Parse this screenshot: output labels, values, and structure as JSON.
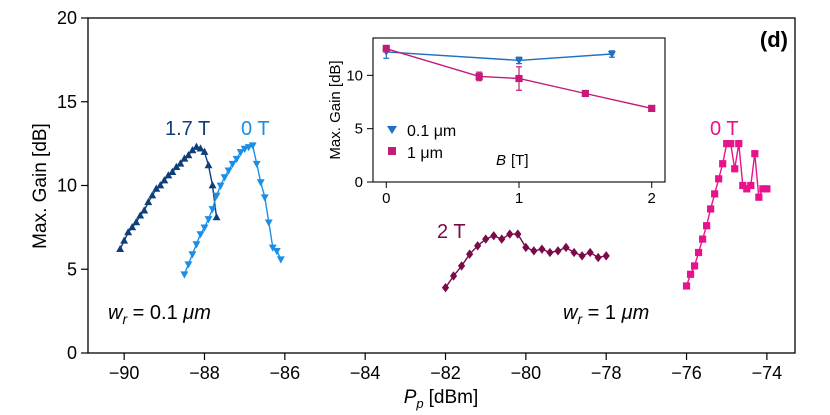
{
  "chart_data": [
    {
      "type": "scatter",
      "panel_label": "(d)",
      "xlabel": "P_p [dBm]",
      "xlabel_main": "P",
      "xlabel_sub": "p",
      "xlabel_unit": "[dBm]",
      "ylabel": "Max. Gain [dB]",
      "xlim": [
        -90.9,
        -73.3
      ],
      "ylim": [
        0,
        20
      ],
      "xticks": [
        -90,
        -88,
        -86,
        -84,
        -82,
        -80,
        -78,
        -76,
        -74
      ],
      "yticks": [
        0,
        5,
        10,
        15,
        20
      ],
      "xtick_labels": [
        "−90",
        "−88",
        "−86",
        "−84",
        "−82",
        "−80",
        "−78",
        "−76",
        "−74"
      ],
      "ytick_labels": [
        "0",
        "5",
        "10",
        "15",
        "20"
      ],
      "series": [
        {
          "name": "0.1 um, 1.7 T",
          "color": "#0f3f7a",
          "marker": "triangle-up",
          "x": [
            -90.1,
            -90.0,
            -89.9,
            -89.8,
            -89.7,
            -89.6,
            -89.5,
            -89.4,
            -89.3,
            -89.2,
            -89.1,
            -89.0,
            -88.9,
            -88.8,
            -88.7,
            -88.6,
            -88.5,
            -88.4,
            -88.3,
            -88.2,
            -88.1,
            -88.0,
            -87.9,
            -87.8,
            -87.7
          ],
          "y": [
            6.2,
            6.7,
            7.2,
            7.5,
            7.8,
            8.2,
            8.5,
            9.0,
            9.4,
            9.8,
            10.0,
            10.3,
            10.6,
            10.8,
            11.1,
            11.3,
            11.6,
            11.8,
            12.1,
            12.3,
            12.2,
            12.0,
            11.2,
            10.0,
            8.1
          ]
        },
        {
          "name": "0.1 um, 0 T",
          "color": "#1a8fe8",
          "marker": "triangle-down",
          "x": [
            -88.5,
            -88.4,
            -88.3,
            -88.2,
            -88.1,
            -88.0,
            -87.9,
            -87.8,
            -87.7,
            -87.6,
            -87.5,
            -87.4,
            -87.3,
            -87.2,
            -87.1,
            -87.0,
            -86.9,
            -86.8,
            -86.7,
            -86.6,
            -86.5,
            -86.4,
            -86.3,
            -86.2,
            -86.1
          ],
          "y": [
            4.7,
            5.3,
            5.9,
            6.5,
            7.1,
            7.5,
            8.0,
            8.6,
            9.4,
            10.0,
            10.5,
            10.9,
            11.3,
            11.6,
            12.0,
            12.2,
            12.3,
            12.4,
            11.3,
            10.2,
            9.3,
            7.8,
            6.3,
            6.1,
            5.6
          ]
        },
        {
          "name": "1 um, 2 T",
          "color": "#7a0a4a",
          "marker": "diamond",
          "x": [
            -82.0,
            -81.8,
            -81.6,
            -81.4,
            -81.2,
            -81.0,
            -80.8,
            -80.6,
            -80.4,
            -80.2,
            -80.0,
            -79.8,
            -79.6,
            -79.4,
            -79.2,
            -79.0,
            -78.8,
            -78.6,
            -78.4,
            -78.2,
            -78.0
          ],
          "y": [
            3.9,
            4.6,
            5.2,
            5.9,
            6.4,
            6.8,
            7.0,
            6.8,
            7.1,
            7.1,
            6.3,
            6.1,
            6.2,
            6.0,
            6.1,
            6.3,
            6.0,
            5.8,
            6.0,
            5.7,
            5.8
          ]
        },
        {
          "name": "1 um, 0 T",
          "color": "#e8138c",
          "marker": "square",
          "x": [
            -76.0,
            -75.9,
            -75.8,
            -75.7,
            -75.6,
            -75.5,
            -75.4,
            -75.3,
            -75.2,
            -75.1,
            -75.0,
            -74.9,
            -74.8,
            -74.7,
            -74.6,
            -74.5,
            -74.4,
            -74.3,
            -74.2,
            -74.1,
            -74.0
          ],
          "y": [
            4.0,
            4.7,
            5.2,
            6.0,
            6.8,
            7.6,
            8.6,
            9.5,
            10.4,
            11.3,
            12.5,
            12.5,
            11.0,
            12.5,
            10.0,
            9.8,
            10.0,
            11.9,
            9.3,
            9.8,
            9.8
          ]
        }
      ],
      "annotations": [
        {
          "text": "1.7 T",
          "color": "#0f3f7a"
        },
        {
          "text": "0 T",
          "color": "#1a8fe8"
        },
        {
          "text": "2 T",
          "color": "#7a0a4a"
        },
        {
          "text": "0 T",
          "color": "#e8138c"
        },
        {
          "text": "w_r = 0.1 μm",
          "main": "w",
          "sub": "r",
          "rest": " = 0.1 ",
          "unit": "μm",
          "color": "#000000"
        },
        {
          "text": "w_r = 1 μm",
          "main": "w",
          "sub": "r",
          "rest": " = 1 ",
          "unit": "μm",
          "color": "#000000"
        }
      ]
    },
    {
      "type": "line",
      "name": "inset",
      "xlabel": "B [T]",
      "xlabel_main": "B",
      "xlabel_unit": "[T]",
      "ylabel": "Max. Gain [dB]",
      "xlim": [
        -0.1,
        2.1
      ],
      "ylim": [
        0,
        13.5
      ],
      "xticks": [
        0,
        1,
        2
      ],
      "yticks": [
        0,
        5,
        10
      ],
      "xtick_labels": [
        "0",
        "1",
        "2"
      ],
      "ytick_labels": [
        "0",
        "5",
        "10"
      ],
      "legend_position": "lower-left",
      "series": [
        {
          "name": "0.1 μm",
          "color": "#1f6fc4",
          "marker": "triangle-down",
          "x": [
            0,
            1,
            1.7
          ],
          "y": [
            12.2,
            11.4,
            12.0
          ],
          "yerr": [
            0.6,
            0.3,
            0.3
          ]
        },
        {
          "name": "1 μm",
          "color": "#c41a7a",
          "marker": "square",
          "x": [
            0,
            0.7,
            1,
            1.5,
            2
          ],
          "y": [
            12.5,
            9.9,
            9.7,
            8.3,
            6.9
          ],
          "yerr": [
            0.3,
            0.4,
            1.1,
            0.2,
            0.2
          ]
        }
      ]
    }
  ]
}
